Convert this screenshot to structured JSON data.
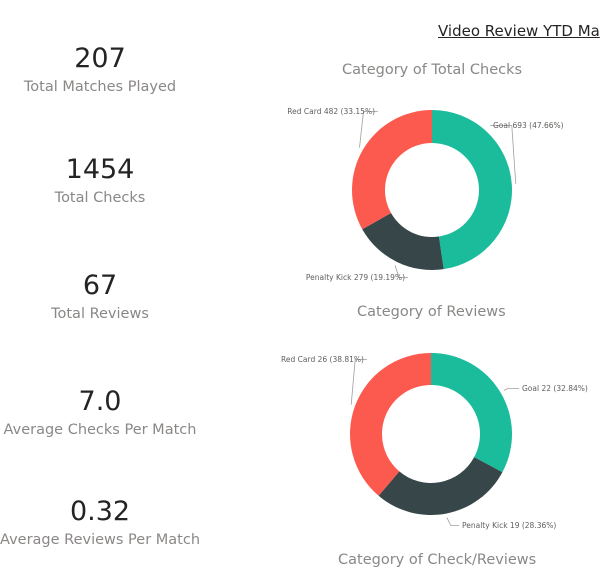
{
  "header": {
    "title": "Video Review YTD Ma"
  },
  "kpis": [
    {
      "value": "207",
      "label": "Total Matches Played"
    },
    {
      "value": "1454",
      "label": "Total Checks"
    },
    {
      "value": "67",
      "label": "Total Reviews"
    },
    {
      "value": "7.0",
      "label": "Average Checks Per Match"
    },
    {
      "value": "0.32",
      "label": "Average Reviews Per Match"
    }
  ],
  "chart_data": [
    {
      "type": "pie",
      "title": "Category of Total Checks",
      "categories": [
        "Goal",
        "Penalty Kick",
        "Red Card"
      ],
      "values": [
        693,
        279,
        482
      ],
      "labels": [
        "Goal 693 (47.66%)",
        "Penalty Kick 279 (19.19%)",
        "Red Card 482 (33.15%)"
      ],
      "colors": [
        "#1ABC9C",
        "#374649",
        "#FD5A4F"
      ]
    },
    {
      "type": "pie",
      "title": "Category of Reviews",
      "categories": [
        "Goal",
        "Penalty Kick",
        "Red Card"
      ],
      "values": [
        22,
        19,
        26
      ],
      "labels": [
        "Goal 22 (32.84%)",
        "Penalty Kick 19 (28.36%)",
        "Red Card 26 (38.81%)"
      ],
      "colors": [
        "#1ABC9C",
        "#374649",
        "#FD5A4F"
      ]
    }
  ],
  "footer": {
    "next_chart_title": "Category of Check/Reviews"
  }
}
